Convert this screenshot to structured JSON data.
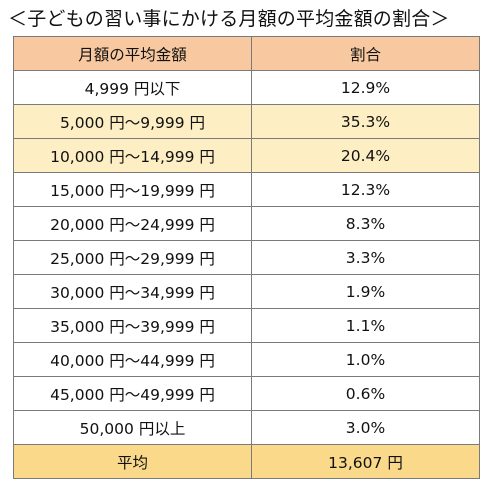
{
  "title": "＜子どもの習い事にかける月額の平均金額の割合＞",
  "colors": {
    "header_bg": "#f8c9a0",
    "highlight_bg": "#fdeec4",
    "average_bg": "#fad98a",
    "border": "#7a7a7a"
  },
  "table": {
    "headers": [
      "月額の平均金額",
      "割合"
    ],
    "rows": [
      {
        "range": "4,999 円以下",
        "share": "12.9%",
        "highlight": false
      },
      {
        "range": "5,000 円～9,999 円",
        "share": "35.3%",
        "highlight": true
      },
      {
        "range": "10,000 円～14,999 円",
        "share": "20.4%",
        "highlight": true
      },
      {
        "range": "15,000 円～19,999 円",
        "share": "12.3%",
        "highlight": false
      },
      {
        "range": "20,000 円～24,999 円",
        "share": "8.3%",
        "highlight": false
      },
      {
        "range": "25,000 円～29,999 円",
        "share": "3.3%",
        "highlight": false
      },
      {
        "range": "30,000 円～34,999 円",
        "share": "1.9%",
        "highlight": false
      },
      {
        "range": "35,000 円～39,999 円",
        "share": "1.1%",
        "highlight": false
      },
      {
        "range": "40,000 円～44,999 円",
        "share": "1.0%",
        "highlight": false
      },
      {
        "range": "45,000 円～49,999 円",
        "share": "0.6%",
        "highlight": false
      },
      {
        "range": "50,000 円以上",
        "share": "3.0%",
        "highlight": false
      }
    ],
    "average": {
      "label": "平均",
      "value": "13,607 円"
    }
  }
}
